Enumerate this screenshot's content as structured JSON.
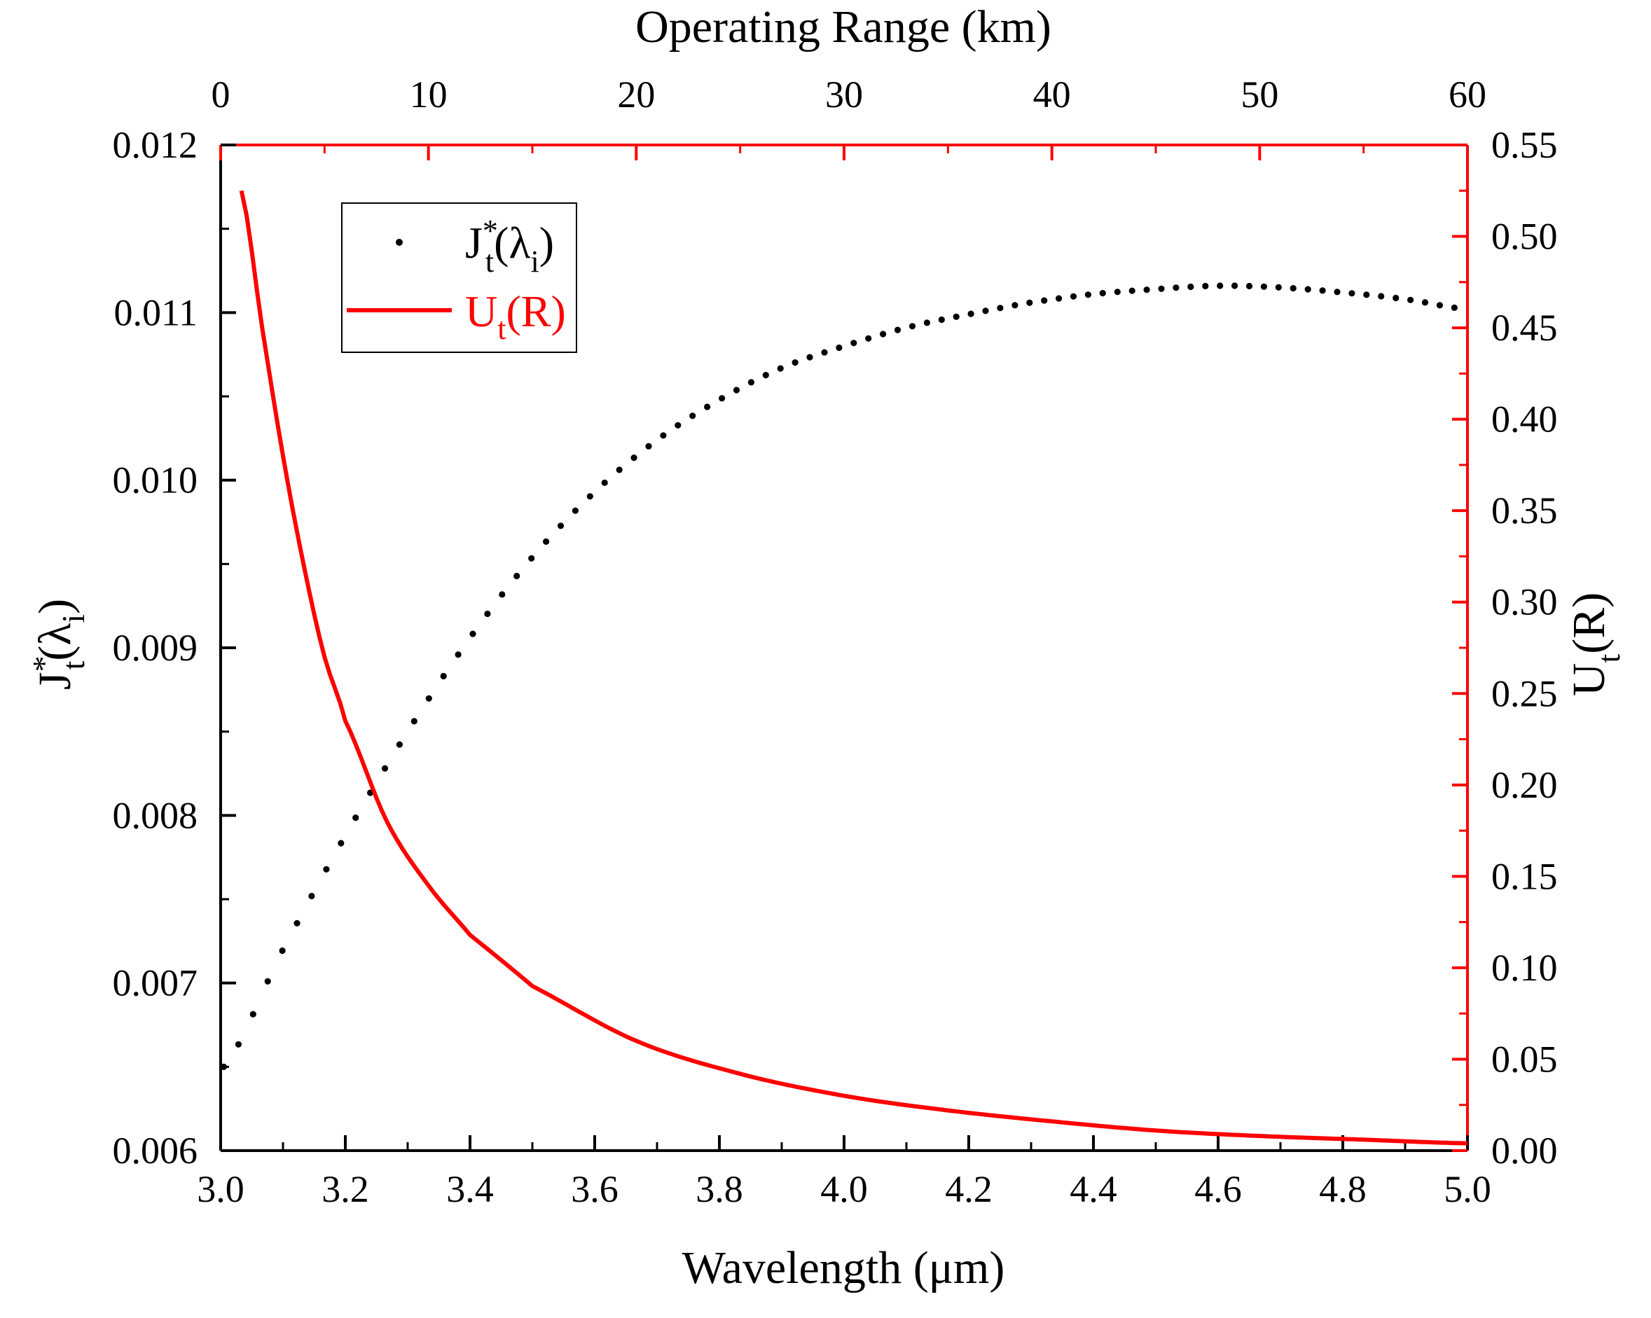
{
  "chart_data": {
    "type": "line",
    "title": "",
    "xlabel": "Wavelength (μm)",
    "x2label": "Operating Range (km)",
    "ylabel": {
      "base": "J",
      "sup": "*",
      "sub": "t",
      "paren_open": "(",
      "lambda": "λ",
      "lambda_sub": "i",
      "paren_close": ")"
    },
    "y2label": {
      "base": "U",
      "sub": "t",
      "rest": "(R)"
    },
    "xlim": [
      3.0,
      5.0
    ],
    "x2lim": [
      0,
      60
    ],
    "ylim": [
      0.006,
      0.012
    ],
    "y2lim": [
      0.0,
      0.55
    ],
    "xticks": [
      "3.0",
      "3.2",
      "3.4",
      "3.6",
      "3.8",
      "4.0",
      "4.2",
      "4.4",
      "4.6",
      "4.8",
      "5.0"
    ],
    "x2ticks": [
      "0",
      "10",
      "20",
      "30",
      "40",
      "50",
      "60"
    ],
    "yticks": [
      "0.006",
      "0.007",
      "0.008",
      "0.009",
      "0.010",
      "0.011",
      "0.012"
    ],
    "y2ticks": [
      "0.00",
      "0.05",
      "0.10",
      "0.15",
      "0.20",
      "0.25",
      "0.30",
      "0.35",
      "0.40",
      "0.45",
      "0.50",
      "0.55"
    ],
    "series": [
      {
        "name": "Jt*(λi)",
        "style": "dots",
        "axis": "left-bottom",
        "color": "#000000",
        "x": [
          3.0,
          3.1,
          3.2,
          3.3,
          3.4,
          3.5,
          3.6,
          3.7,
          3.8,
          3.9,
          4.0,
          4.1,
          4.2,
          4.3,
          4.4,
          4.5,
          4.6,
          4.7,
          4.8,
          4.9,
          5.0
        ],
        "y": [
          0.00648,
          0.0072,
          0.00788,
          0.0085,
          0.00906,
          0.00954,
          0.00993,
          0.01024,
          0.01048,
          0.01067,
          0.0108,
          0.01091,
          0.01099,
          0.01106,
          0.01111,
          0.01114,
          0.01116,
          0.01115,
          0.01112,
          0.01108,
          0.01102
        ]
      },
      {
        "name": "Ut(R)",
        "style": "line",
        "axis": "right-top",
        "color": "#ff0000",
        "x": [
          1,
          2,
          3,
          4,
          5,
          6,
          8,
          10,
          12,
          15,
          20,
          25,
          30,
          35,
          40,
          45,
          50,
          55,
          60
        ],
        "y": [
          0.525,
          0.45,
          0.38,
          0.32,
          0.27,
          0.235,
          0.18,
          0.145,
          0.118,
          0.09,
          0.06,
          0.042,
          0.03,
          0.022,
          0.016,
          0.011,
          0.008,
          0.006,
          0.004
        ]
      }
    ],
    "legend": {
      "position": "top-left",
      "entries": [
        {
          "name_base": "J",
          "name_sup": "*",
          "name_sub": "t",
          "name_rest": "(λ",
          "name_sub2": "i",
          "name_end": ")",
          "style": "dot"
        },
        {
          "name_base": "U",
          "name_sub": "t",
          "name_rest": "(R)",
          "style": "line"
        }
      ]
    },
    "colors": {
      "left_axis": "#000000",
      "right_axis": "#ff0000"
    }
  }
}
